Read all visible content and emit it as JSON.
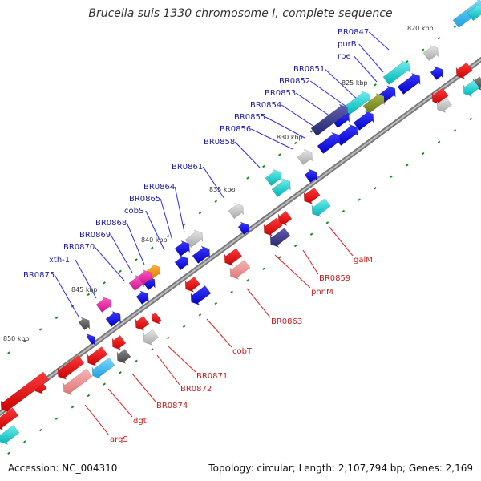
{
  "title": "Brucella suis 1330 chromosome I, complete sequence",
  "accession": "Accession: NC_004310",
  "summary": "Topology: circular; Length: 2,107,794 bp; Genes: 2,169",
  "ticks": [
    "820 kbp",
    "825 kbp",
    "830 kbp",
    "835 kbp",
    "840 kbp",
    "845 kbp",
    "850 kbp"
  ],
  "forward_genes": [
    "BR0847",
    "purB",
    "rpe",
    "BR0851",
    "BR0852",
    "BR0853",
    "BR0854",
    "BR0855",
    "BR0856",
    "BR0858",
    "BR0861",
    "BR0864",
    "BR0865",
    "cobS",
    "BR0868",
    "BR0869",
    "BR0870",
    "xth-1",
    "BR0875"
  ],
  "reverse_genes": [
    "galM",
    "BR0859",
    "phnM",
    "BR0863",
    "cobT",
    "BR0871",
    "BR0872",
    "BR0874",
    "dgt",
    "argS"
  ],
  "colors": {
    "forward_label": "#1a1aa6",
    "reverse_label": "#cc1a1a",
    "backbone": "#888888"
  }
}
